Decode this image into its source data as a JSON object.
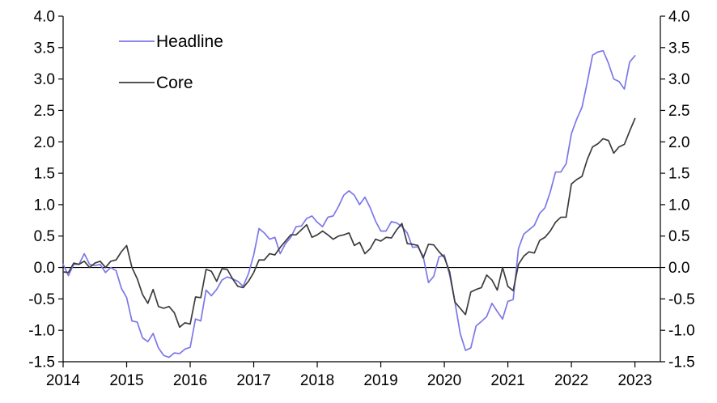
{
  "chart_data": {
    "type": "line",
    "title": "",
    "xlabel": "",
    "ylabel": "",
    "ylim": [
      -1.5,
      4.0
    ],
    "yticks": [
      -1.5,
      -1.0,
      -0.5,
      0.0,
      0.5,
      1.0,
      1.5,
      2.0,
      2.5,
      3.0,
      3.5,
      4.0
    ],
    "ytick_labels": [
      "-1.5",
      "-1.0",
      "-0.5",
      "0.0",
      "0.5",
      "1.0",
      "1.5",
      "2.0",
      "2.5",
      "3.0",
      "3.5",
      "4.0"
    ],
    "xlim": [
      2014.0,
      2023.4
    ],
    "xticks": [
      2014,
      2015,
      2016,
      2017,
      2018,
      2019,
      2020,
      2021,
      2022,
      2023
    ],
    "xtick_labels": [
      "2014",
      "2015",
      "2016",
      "2017",
      "2018",
      "2019",
      "2020",
      "2021",
      "2022",
      "2023"
    ],
    "secondary_y_axis": true,
    "zero_line": true,
    "grid": false,
    "legend_position": "top-left",
    "x_start": 2014.0,
    "x_step_months": 1,
    "series": [
      {
        "name": "Headline",
        "color": "#7b78e8",
        "values": [
          0.05,
          -0.13,
          0.05,
          0.05,
          0.22,
          0.05,
          0.03,
          0.05,
          -0.08,
          0.0,
          -0.05,
          -0.33,
          -0.48,
          -0.85,
          -0.87,
          -1.12,
          -1.18,
          -1.05,
          -1.28,
          -1.4,
          -1.43,
          -1.36,
          -1.37,
          -1.3,
          -1.27,
          -0.82,
          -0.85,
          -0.36,
          -0.45,
          -0.35,
          -0.2,
          -0.15,
          -0.18,
          -0.22,
          -0.3,
          -0.1,
          0.2,
          0.62,
          0.55,
          0.45,
          0.48,
          0.22,
          0.38,
          0.48,
          0.65,
          0.66,
          0.78,
          0.82,
          0.72,
          0.65,
          0.8,
          0.82,
          0.97,
          1.15,
          1.22,
          1.15,
          1.0,
          1.12,
          0.95,
          0.74,
          0.58,
          0.58,
          0.73,
          0.71,
          0.65,
          0.55,
          0.32,
          0.33,
          0.18,
          -0.24,
          -0.14,
          0.17,
          0.2,
          -0.12,
          -0.55,
          -1.05,
          -1.32,
          -1.28,
          -0.93,
          -0.86,
          -0.78,
          -0.57,
          -0.7,
          -0.82,
          -0.54,
          -0.51,
          0.3,
          0.53,
          0.6,
          0.67,
          0.86,
          0.95,
          1.2,
          1.52,
          1.52,
          1.65,
          2.13,
          2.36,
          2.55,
          2.95,
          3.38,
          3.43,
          3.45,
          3.25,
          3.0,
          2.96,
          2.84,
          3.27,
          3.37
        ]
      },
      {
        "name": "Core",
        "color": "#3c3c3c",
        "values": [
          -0.07,
          -0.08,
          0.07,
          0.05,
          0.1,
          0.0,
          0.07,
          0.1,
          0.0,
          0.1,
          0.12,
          0.25,
          0.35,
          0.0,
          -0.18,
          -0.43,
          -0.57,
          -0.35,
          -0.62,
          -0.65,
          -0.62,
          -0.72,
          -0.95,
          -0.88,
          -0.9,
          -0.47,
          -0.48,
          -0.03,
          -0.06,
          -0.22,
          -0.02,
          -0.03,
          -0.18,
          -0.3,
          -0.32,
          -0.22,
          -0.08,
          0.12,
          0.12,
          0.22,
          0.2,
          0.32,
          0.42,
          0.52,
          0.52,
          0.6,
          0.68,
          0.48,
          0.52,
          0.58,
          0.52,
          0.45,
          0.5,
          0.52,
          0.55,
          0.35,
          0.4,
          0.22,
          0.3,
          0.45,
          0.42,
          0.48,
          0.47,
          0.6,
          0.7,
          0.38,
          0.37,
          0.35,
          0.15,
          0.37,
          0.36,
          0.25,
          0.16,
          -0.07,
          -0.55,
          -0.65,
          -0.75,
          -0.39,
          -0.35,
          -0.32,
          -0.12,
          -0.2,
          -0.36,
          0.0,
          -0.3,
          -0.37,
          0.05,
          0.18,
          0.25,
          0.23,
          0.43,
          0.48,
          0.58,
          0.72,
          0.8,
          0.8,
          1.33,
          1.4,
          1.45,
          1.72,
          1.92,
          1.97,
          2.05,
          2.02,
          1.82,
          1.92,
          1.96,
          2.17,
          2.37
        ]
      }
    ]
  }
}
